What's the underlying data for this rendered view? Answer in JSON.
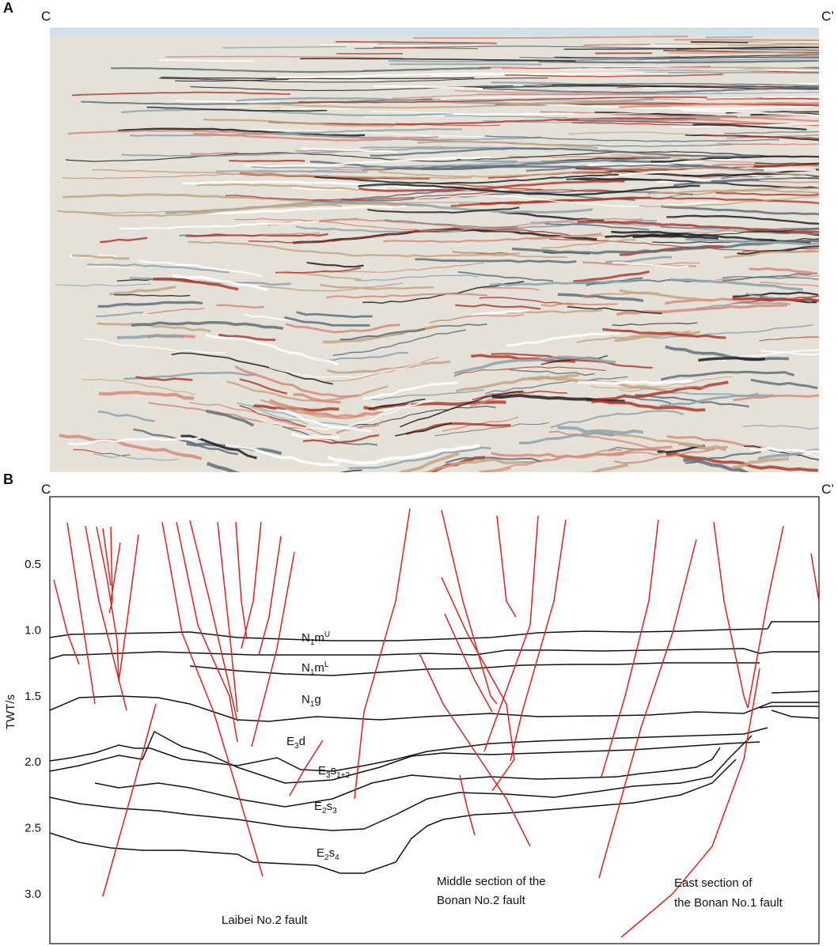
{
  "panel_a": {
    "label": "A",
    "left_end": "C",
    "right_end": "C’"
  },
  "panel_b": {
    "label": "B",
    "left_end": "C",
    "right_end": "C’",
    "y_axis_label": "TWT/s",
    "ylim": [
      0,
      3.4
    ],
    "yticks": [
      0.5,
      {
        "value": 1.0,
        "label": "1.0"
      },
      1.5,
      {
        "value": 2.0,
        "label": "2.0"
      },
      2.5,
      {
        "value": 3.0,
        "label": "3.0"
      }
    ],
    "units": [
      [
        "N",
        "1",
        "m",
        "U"
      ],
      [
        "N",
        "1",
        "m",
        "L"
      ],
      [
        "N",
        "1",
        "g"
      ],
      [
        "E",
        "3",
        "d"
      ],
      [
        "E",
        "3",
        "s",
        "1+2"
      ],
      [
        "E",
        "2",
        "s",
        "3"
      ],
      [
        "E",
        "2",
        "s",
        "4"
      ]
    ],
    "faults": [
      [
        "Laibei No.2 fault"
      ],
      [
        "Middle section of the",
        "Bonan No.2 fault"
      ],
      [
        "East section of",
        "the Bonan No.1 fault"
      ]
    ]
  }
}
